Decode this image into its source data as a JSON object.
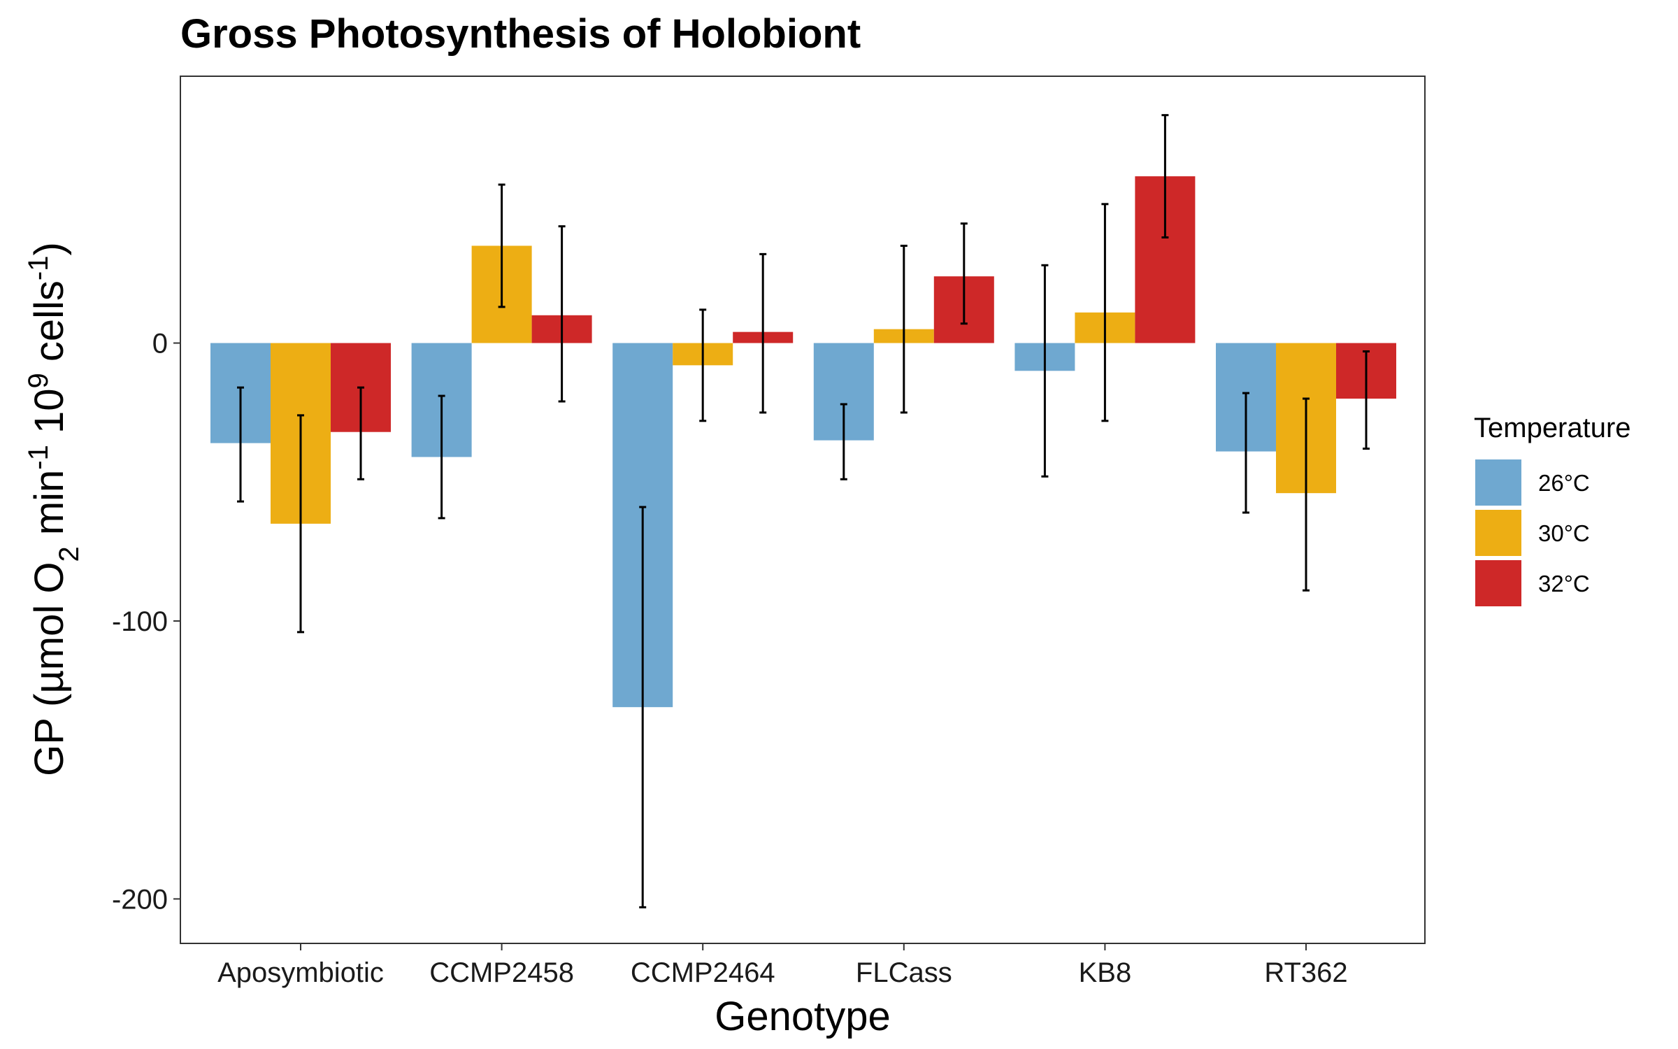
{
  "chart_data": {
    "type": "bar",
    "title": "Gross Photosynthesis of Holobiont",
    "xlabel": "Genotype",
    "ylabel_parts": {
      "prefix": "GP (µmol O",
      "o2_sub": "2",
      "min": " min",
      "min_sup": "-1",
      "ten": " 10",
      "ten_sup": "9",
      "cells": " cells",
      "cells_sup": "-1",
      "suffix": ")"
    },
    "categories": [
      "Aposymbiotic",
      "CCMP2458",
      "CCMP2464",
      "FLCass",
      "KB8",
      "RT362"
    ],
    "ylim": [
      -216,
      96
    ],
    "yticks": [
      0,
      -100,
      -200
    ],
    "ytick_labels": [
      "0",
      "-100",
      "-200"
    ],
    "legend": {
      "title": "Temperature",
      "position": "right"
    },
    "series": [
      {
        "name": "26°C",
        "color": "#6FA8D0",
        "values": [
          -36,
          -41,
          -131,
          -35,
          -10,
          -39
        ],
        "err_low": [
          -57,
          -63,
          -203,
          -49,
          -48,
          -61
        ],
        "err_high": [
          -16,
          -19,
          -59,
          -22,
          28,
          -18
        ]
      },
      {
        "name": "30°C",
        "color": "#EDAE14",
        "values": [
          -65,
          35,
          -8,
          5,
          11,
          -54
        ],
        "err_low": [
          -104,
          13,
          -28,
          -25,
          -28,
          -89
        ],
        "err_high": [
          -26,
          57,
          12,
          35,
          50,
          -20
        ]
      },
      {
        "name": "32°C",
        "color": "#CE2828",
        "values": [
          -32,
          10,
          4,
          24,
          60,
          -20
        ],
        "err_low": [
          -49,
          -21,
          -25,
          7,
          38,
          -38
        ],
        "err_high": [
          -16,
          42,
          32,
          43,
          82,
          -3
        ]
      }
    ],
    "grid": false
  }
}
